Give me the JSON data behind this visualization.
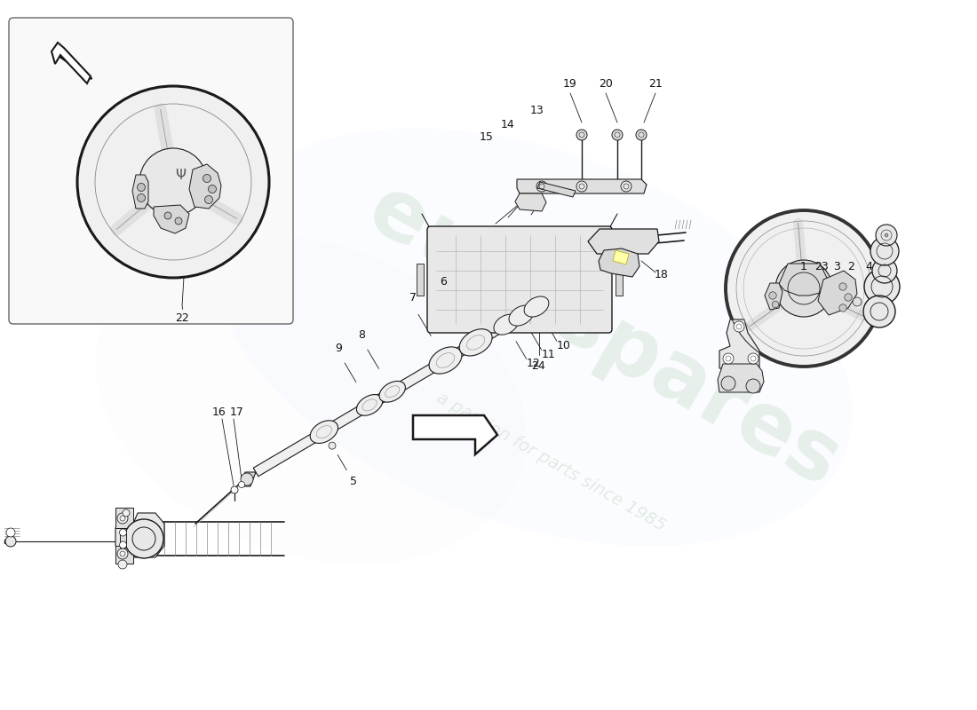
{
  "background_color": "#ffffff",
  "line_color": "#1a1a1a",
  "label_color": "#111111",
  "watermark1": "eurospares",
  "watermark2": "a passion for parts since 1985",
  "wm_color": "#c8dcc8",
  "part_numbers": [
    "1",
    "2",
    "3",
    "4",
    "5",
    "6",
    "7",
    "8",
    "9",
    "10",
    "11",
    "12",
    "13",
    "14",
    "15",
    "16",
    "17",
    "18",
    "19",
    "20",
    "21",
    "22",
    "23",
    "24"
  ],
  "fig_width": 11.0,
  "fig_height": 8.0,
  "dpi": 100
}
